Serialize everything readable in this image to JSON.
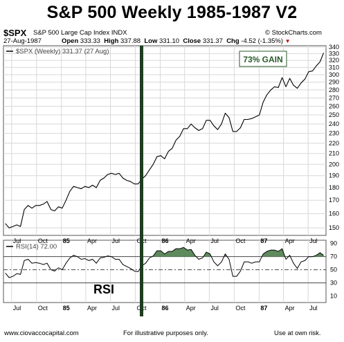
{
  "title": "S&P 500 Weekly 1985-1987 V2",
  "header": {
    "symbol": "$SPX",
    "description": "S&P 500 Large Cap Index  INDX",
    "source": "© StockCharts.com",
    "date": "27-Aug-1987",
    "open_label": "Open",
    "open_value": "333.33",
    "high_label": "High",
    "high_value": "337.88",
    "low_label": "Low",
    "low_value": "331.10",
    "close_label": "Close",
    "close_value": "331.37",
    "chg_label": "Chg",
    "chg_value": "-4.52 (-1.35%)",
    "chg_marker": "▼"
  },
  "footer": {
    "left": "www.ciovaccocapital.com",
    "middle": "For illustrative purposes only.",
    "right": "Use at own risk."
  },
  "colors": {
    "price_line": "#000000",
    "rsi_fill": "#5e8a5e",
    "vertical_bar": "#1f3d1f",
    "grid": "#d8d8d8"
  },
  "chart_data": [
    {
      "type": "line",
      "legend": "$SPX (Weekly) 331.37 (27 Aug)",
      "annotation": "73% GAIN",
      "y_ticks": [
        150,
        160,
        170,
        180,
        190,
        200,
        210,
        220,
        230,
        240,
        250,
        260,
        270,
        280,
        290,
        300,
        310,
        320,
        330,
        340
      ],
      "y_scale": "log",
      "ylim": [
        145,
        342
      ],
      "x_ticks": [
        "Jul",
        "Oct",
        "85",
        "Apr",
        "Jul",
        "Oct",
        "86",
        "Apr",
        "Jul",
        "Oct",
        "87",
        "Apr",
        "Jul"
      ],
      "x": [
        "1984-06-08",
        "1984-06-22",
        "1984-07-06",
        "1984-07-20",
        "1984-08-03",
        "1984-08-17",
        "1984-08-31",
        "1984-09-14",
        "1984-09-28",
        "1984-10-12",
        "1984-10-26",
        "1984-11-09",
        "1984-11-23",
        "1984-12-07",
        "1984-12-21",
        "1985-01-04",
        "1985-01-18",
        "1985-02-01",
        "1985-02-15",
        "1985-03-01",
        "1985-03-15",
        "1985-03-29",
        "1985-04-12",
        "1985-04-26",
        "1985-05-10",
        "1985-05-24",
        "1985-06-07",
        "1985-06-21",
        "1985-07-05",
        "1985-07-19",
        "1985-08-02",
        "1985-08-16",
        "1985-08-30",
        "1985-09-13",
        "1985-09-27",
        "1985-10-11",
        "1985-10-25",
        "1985-11-08",
        "1985-11-22",
        "1985-12-06",
        "1985-12-20",
        "1986-01-03",
        "1986-01-17",
        "1986-01-31",
        "1986-02-14",
        "1986-02-28",
        "1986-03-14",
        "1986-03-28",
        "1986-04-11",
        "1986-04-25",
        "1986-05-09",
        "1986-05-23",
        "1986-06-06",
        "1986-06-20",
        "1986-07-04",
        "1986-07-18",
        "1986-08-01",
        "1986-08-15",
        "1986-08-29",
        "1986-09-12",
        "1986-09-26",
        "1986-10-10",
        "1986-10-24",
        "1986-11-07",
        "1986-11-21",
        "1986-12-05",
        "1986-12-19",
        "1987-01-02",
        "1987-01-16",
        "1987-01-30",
        "1987-02-13",
        "1987-02-27",
        "1987-03-13",
        "1987-03-27",
        "1987-04-10",
        "1987-04-24",
        "1987-05-08",
        "1987-05-22",
        "1987-06-05",
        "1987-06-19",
        "1987-07-03",
        "1987-07-17",
        "1987-07-31",
        "1987-08-14",
        "1987-08-27"
      ],
      "series": [
        {
          "values": [
            153,
            150,
            151,
            152,
            151,
            163,
            166,
            164,
            166,
            166,
            167,
            169,
            163,
            162,
            165,
            164,
            170,
            177,
            181,
            180,
            179,
            181,
            180,
            182,
            180,
            186,
            188,
            191,
            192,
            191,
            192,
            188,
            186,
            185,
            183,
            183,
            187,
            190,
            195,
            200,
            207,
            208,
            205,
            212,
            215,
            223,
            227,
            235,
            235,
            240,
            236,
            233,
            235,
            244,
            244,
            238,
            234,
            240,
            252,
            247,
            232,
            232,
            236,
            245,
            245,
            246,
            248,
            250,
            265,
            274,
            280,
            284,
            283,
            296,
            284,
            295,
            286,
            282,
            289,
            294,
            304,
            305,
            312,
            318,
            331
          ]
        }
      ]
    },
    {
      "type": "line",
      "legend": "RSI(14) 72.00",
      "ylim": [
        0,
        95
      ],
      "y_ticks": [
        10,
        30,
        50,
        70,
        90
      ],
      "reference_lines": [
        30,
        50,
        70
      ],
      "x_ticks": [
        "Jul",
        "Oct",
        "85",
        "Apr",
        "Jul",
        "Oct",
        "86",
        "Apr",
        "Jul",
        "Oct",
        "87",
        "Apr",
        "Jul"
      ],
      "series": [
        {
          "values": [
            45,
            38,
            40,
            44,
            43,
            64,
            66,
            60,
            61,
            60,
            58,
            60,
            50,
            48,
            53,
            50,
            60,
            68,
            72,
            70,
            66,
            67,
            64,
            66,
            60,
            68,
            69,
            71,
            70,
            66,
            66,
            58,
            55,
            52,
            48,
            47,
            56,
            60,
            68,
            71,
            79,
            79,
            74,
            78,
            78,
            82,
            82,
            84,
            80,
            81,
            72,
            66,
            68,
            77,
            74,
            62,
            56,
            62,
            74,
            66,
            40,
            40,
            48,
            62,
            62,
            60,
            62,
            62,
            74,
            78,
            80,
            80,
            78,
            82,
            66,
            72,
            60,
            52,
            62,
            64,
            70,
            70,
            72,
            76,
            72
          ]
        }
      ]
    }
  ]
}
